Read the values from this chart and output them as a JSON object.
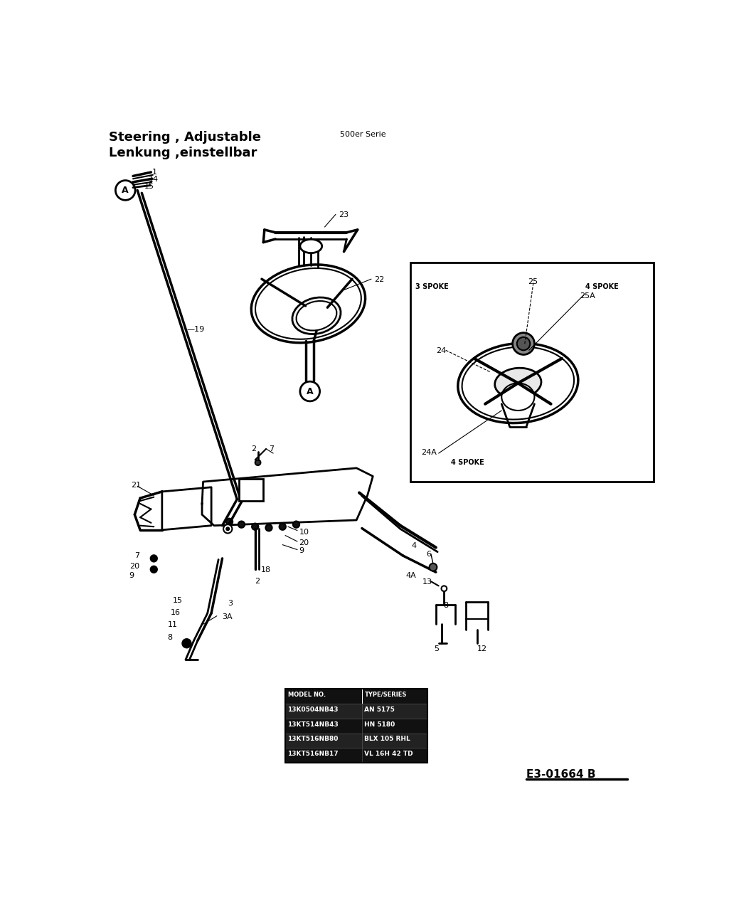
{
  "title_line1": "Steering , Adjustable",
  "title_line2": "Lenkung ,einstellbar",
  "subtitle": "500er Serie",
  "diagram_code": "E3-01664 B",
  "bg_color": "#ffffff",
  "title_fontsize": 13,
  "subtitle_fontsize": 8,
  "table_rows": [
    [
      "13K0504NB43",
      "AN 5175"
    ],
    [
      "13KT514NB43",
      "HN 5180"
    ],
    [
      "13KT516NB80",
      "BLX 105 RHL"
    ],
    [
      "13KT516NB17",
      "VL 16H 42 TD"
    ]
  ],
  "figsize": [
    10.32,
    12.79
  ],
  "dpi": 100
}
